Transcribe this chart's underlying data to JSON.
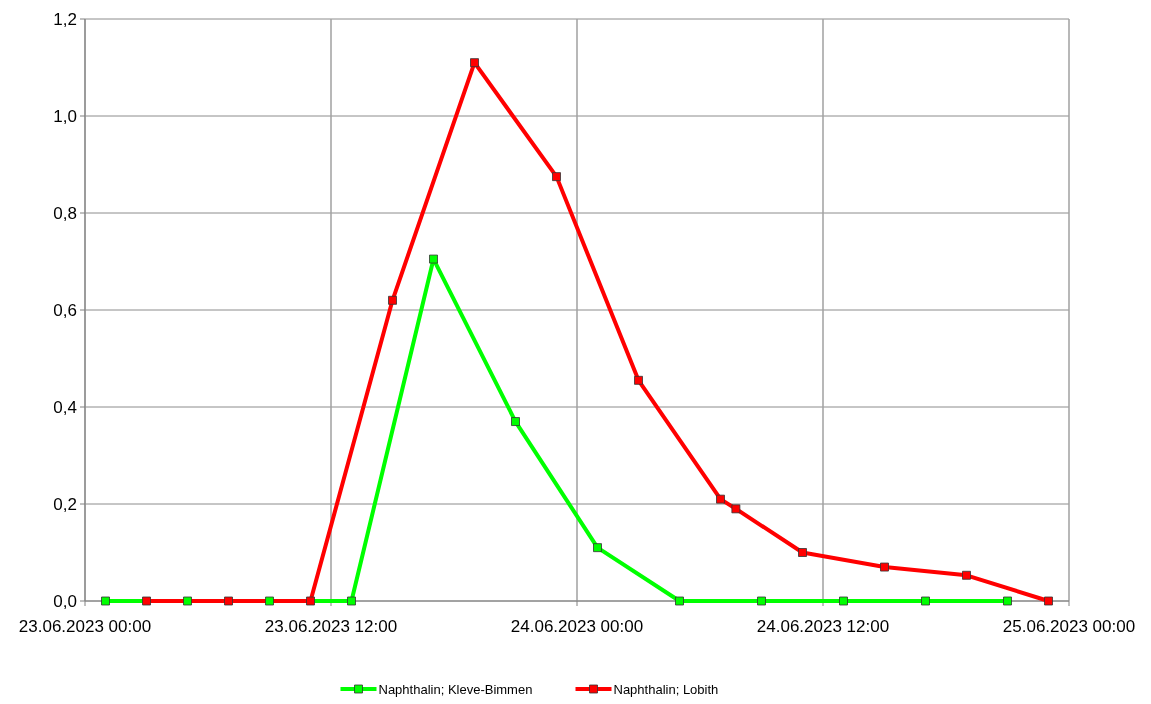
{
  "chart_data": {
    "type": "line",
    "marker": "square",
    "grid": true,
    "legend": "bottom",
    "xlim": [
      "2023-06-23T00:00",
      "2023-06-25T00:00"
    ],
    "xticks": [
      {
        "value": "2023-06-23T00:00",
        "label": "23.06.2023 00:00"
      },
      {
        "value": "2023-06-23T12:00",
        "label": "23.06.2023 12:00"
      },
      {
        "value": "2023-06-24T00:00",
        "label": "24.06.2023 00:00"
      },
      {
        "value": "2023-06-24T12:00",
        "label": "24.06.2023 12:00"
      },
      {
        "value": "2023-06-25T00:00",
        "label": "25.06.2023 00:00"
      }
    ],
    "ylim": [
      0,
      1.2
    ],
    "yticks": [
      {
        "value": 0,
        "label": "0,0"
      },
      {
        "value": 0.2,
        "label": "0,2"
      },
      {
        "value": 0.4,
        "label": "0,4"
      },
      {
        "value": 0.6,
        "label": "0,6"
      },
      {
        "value": 0.8,
        "label": "0,8"
      },
      {
        "value": 1,
        "label": "1,0"
      },
      {
        "value": 1.2,
        "label": "1,2"
      }
    ],
    "series": [
      {
        "name": "Naphthalin; Kleve-Bimmen",
        "color": "#00ff00",
        "x": [
          "2023-06-23T01:00",
          "2023-06-23T05:00",
          "2023-06-23T09:00",
          "2023-06-23T13:00",
          "2023-06-23T17:00",
          "2023-06-23T21:00",
          "2023-06-24T01:00",
          "2023-06-24T05:00",
          "2023-06-24T09:00",
          "2023-06-24T13:00",
          "2023-06-24T17:00",
          "2023-06-24T21:00"
        ],
        "values": [
          0,
          0,
          0,
          0,
          0.705,
          0.37,
          0.11,
          0,
          0,
          0,
          0,
          0
        ]
      },
      {
        "name": "Naphthalin; Lobith",
        "color": "#ff0000",
        "x": [
          "2023-06-23T03:00",
          "2023-06-23T07:00",
          "2023-06-23T11:00",
          "2023-06-23T15:00",
          "2023-06-23T19:00",
          "2023-06-23T23:00",
          "2023-06-24T03:00",
          "2023-06-24T07:00",
          "2023-06-24T07:45",
          "2023-06-24T11:00",
          "2023-06-24T15:00",
          "2023-06-24T19:00",
          "2023-06-24T23:00"
        ],
        "values": [
          0,
          0,
          0,
          0.62,
          1.11,
          0.875,
          0.455,
          0.21,
          0.19,
          0.1,
          0.07,
          0.053,
          0
        ]
      }
    ]
  }
}
